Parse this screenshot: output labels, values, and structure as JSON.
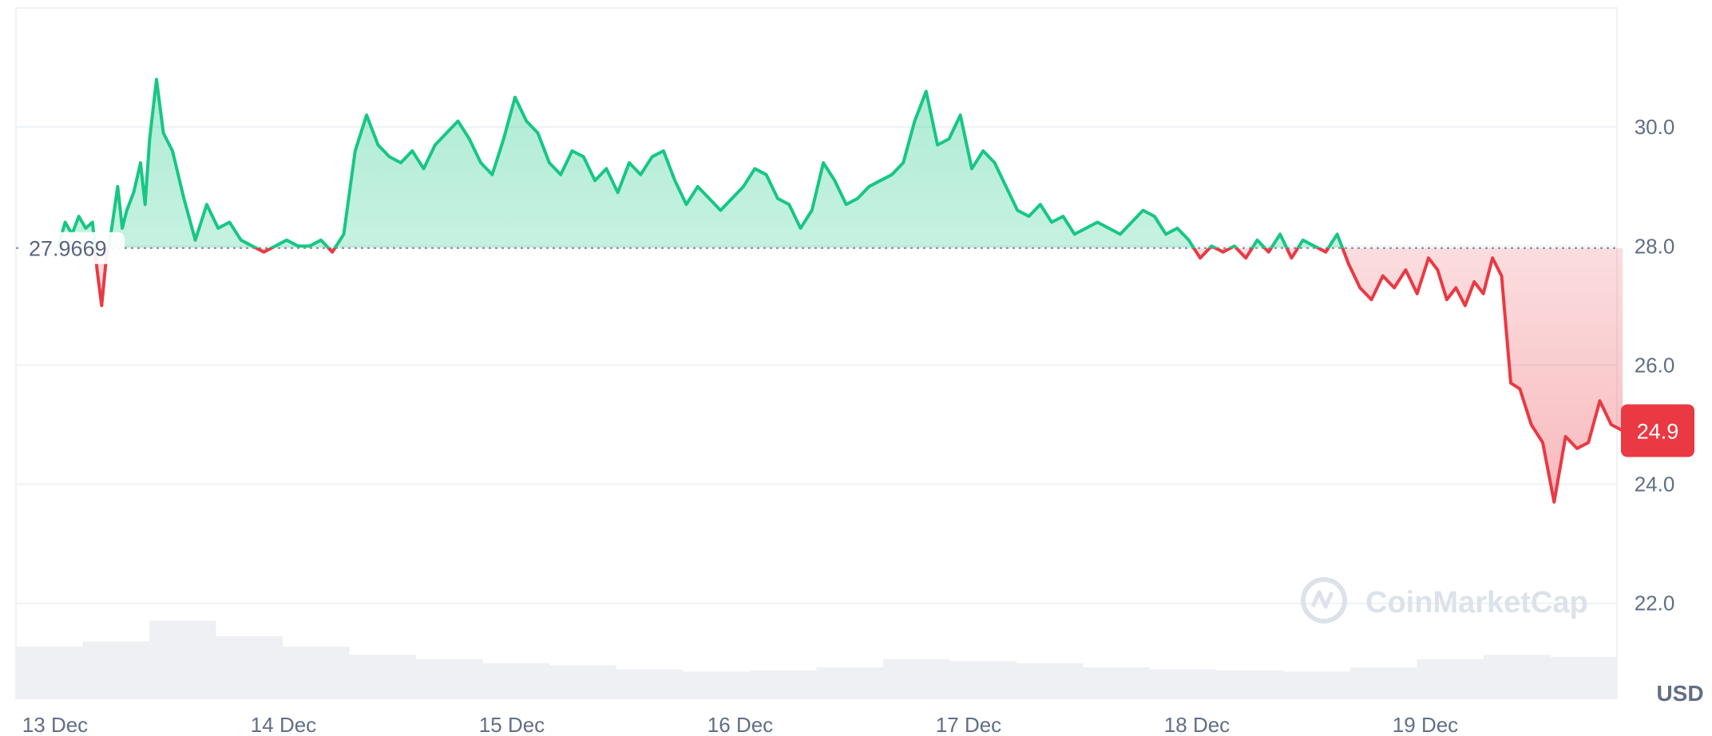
{
  "chart_data": {
    "type": "area",
    "x_tick_labels": [
      "13 Dec",
      "14 Dec",
      "15 Dec",
      "16 Dec",
      "17 Dec",
      "18 Dec",
      "19 Dec"
    ],
    "y_tick_labels": [
      "30.0",
      "28.0",
      "26.0",
      "24.0",
      "22.0"
    ],
    "ylim": [
      20.4,
      32.0
    ],
    "unit": "USD",
    "reference_line": {
      "value": 27.9669,
      "label": "27.9669"
    },
    "current_price": {
      "value": 24.9,
      "label": "24.9"
    },
    "watermark": "CoinMarketCap",
    "grid": true,
    "series": [
      {
        "x": [
          0,
          0.03,
          0.06,
          0.09,
          0.12,
          0.15,
          0.17,
          0.19,
          0.21,
          0.23,
          0.26,
          0.28,
          0.3,
          0.33,
          0.36,
          0.38,
          0.4,
          0.43,
          0.46,
          0.5,
          0.55,
          0.6,
          0.65,
          0.7,
          0.75,
          0.8,
          0.85,
          0.9,
          0.95,
          1.0,
          1.05,
          1.1,
          1.15,
          1.2,
          1.25,
          1.3,
          1.35,
          1.4,
          1.45,
          1.5,
          1.55,
          1.6,
          1.65,
          1.7,
          1.75,
          1.8,
          1.85,
          1.9,
          1.95,
          2.0,
          2.05,
          2.1,
          2.15,
          2.2,
          2.25,
          2.3,
          2.35,
          2.4,
          2.45,
          2.5,
          2.55,
          2.6,
          2.65,
          2.7,
          2.75,
          2.8,
          2.85,
          2.9,
          2.95,
          3.0,
          3.05,
          3.1,
          3.15,
          3.2,
          3.25,
          3.3,
          3.35,
          3.4,
          3.45,
          3.5,
          3.55,
          3.6,
          3.65,
          3.7,
          3.75,
          3.8,
          3.85,
          3.9,
          3.95,
          4.0,
          4.05,
          4.1,
          4.15,
          4.2,
          4.25,
          4.3,
          4.35,
          4.4,
          4.45,
          4.5,
          4.55,
          4.6,
          4.65,
          4.7,
          4.75,
          4.8,
          4.85,
          4.9,
          4.95,
          5.0,
          5.05,
          5.1,
          5.15,
          5.2,
          5.25,
          5.3,
          5.35,
          5.4,
          5.45,
          5.5,
          5.55,
          5.6,
          5.65,
          5.7,
          5.75,
          5.8,
          5.85,
          5.9,
          5.95,
          6.0,
          6.04,
          6.08,
          6.12,
          6.16,
          6.2,
          6.24,
          6.28,
          6.32,
          6.36,
          6.4,
          6.45,
          6.5,
          6.55,
          6.6,
          6.65,
          6.7,
          6.75,
          6.8,
          6.85
        ],
        "values": [
          28.0,
          28.4,
          28.2,
          28.5,
          28.3,
          28.4,
          27.6,
          27.0,
          27.8,
          28.2,
          29.0,
          28.3,
          28.6,
          28.9,
          29.4,
          28.7,
          29.8,
          30.8,
          29.9,
          29.6,
          28.8,
          28.1,
          28.7,
          28.3,
          28.4,
          28.1,
          28.0,
          27.9,
          28.0,
          28.1,
          28.0,
          28.0,
          28.1,
          27.9,
          28.2,
          29.6,
          30.2,
          29.7,
          29.5,
          29.4,
          29.6,
          29.3,
          29.7,
          29.9,
          30.1,
          29.8,
          29.4,
          29.2,
          29.8,
          30.5,
          30.1,
          29.9,
          29.4,
          29.2,
          29.6,
          29.5,
          29.1,
          29.3,
          28.9,
          29.4,
          29.2,
          29.5,
          29.6,
          29.1,
          28.7,
          29.0,
          28.8,
          28.6,
          28.8,
          29.0,
          29.3,
          29.2,
          28.8,
          28.7,
          28.3,
          28.6,
          29.4,
          29.1,
          28.7,
          28.8,
          29.0,
          29.1,
          29.2,
          29.4,
          30.1,
          30.6,
          29.7,
          29.8,
          30.2,
          29.3,
          29.6,
          29.4,
          29.0,
          28.6,
          28.5,
          28.7,
          28.4,
          28.5,
          28.2,
          28.3,
          28.4,
          28.3,
          28.2,
          28.4,
          28.6,
          28.5,
          28.2,
          28.3,
          28.1,
          27.8,
          28.0,
          27.9,
          28.0,
          27.8,
          28.1,
          27.9,
          28.2,
          27.8,
          28.1,
          28.0,
          27.9,
          28.2,
          27.7,
          27.3,
          27.1,
          27.5,
          27.3,
          27.6,
          27.2,
          27.8,
          27.6,
          27.1,
          27.3,
          27.0,
          27.4,
          27.2,
          27.8,
          27.5,
          25.7,
          25.6,
          25.0,
          24.7,
          23.7,
          24.8,
          24.6,
          24.7,
          25.4,
          25.0,
          24.9
        ]
      }
    ],
    "colors": {
      "up_line": "#16c784",
      "down_line": "#ea3943",
      "volume": "#eef0f4",
      "grid": "#eff2f5",
      "axis_text": "#616e85"
    }
  }
}
